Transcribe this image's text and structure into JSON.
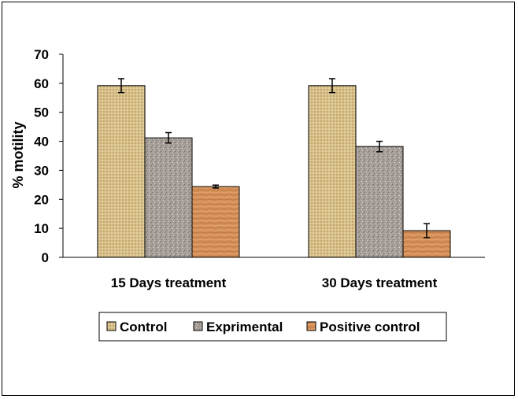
{
  "chart_data": {
    "type": "bar",
    "title": "",
    "xlabel": "",
    "ylabel": "% motility",
    "ylim": [
      0,
      70
    ],
    "yticks": [
      0,
      10,
      20,
      30,
      40,
      50,
      60,
      70
    ],
    "grid": false,
    "legend_position": "bottom",
    "categories": [
      "15 Days treatment",
      "30 Days treatment"
    ],
    "series": [
      {
        "name": "Control",
        "values": [
          59.2,
          59.2
        ],
        "errors": [
          2.4,
          2.4
        ],
        "color": "#d8c08a",
        "pattern": "woven-burlap"
      },
      {
        "name": "Exprimental",
        "values": [
          41.2,
          38.2
        ],
        "errors": [
          1.8,
          1.8
        ],
        "color": "#a7a09a",
        "pattern": "speckled-granite"
      },
      {
        "name": "Positive control",
        "values": [
          24.4,
          9.2
        ],
        "errors": [
          0.5,
          2.4
        ],
        "color": "#d49058",
        "pattern": "wood-grain"
      }
    ]
  }
}
